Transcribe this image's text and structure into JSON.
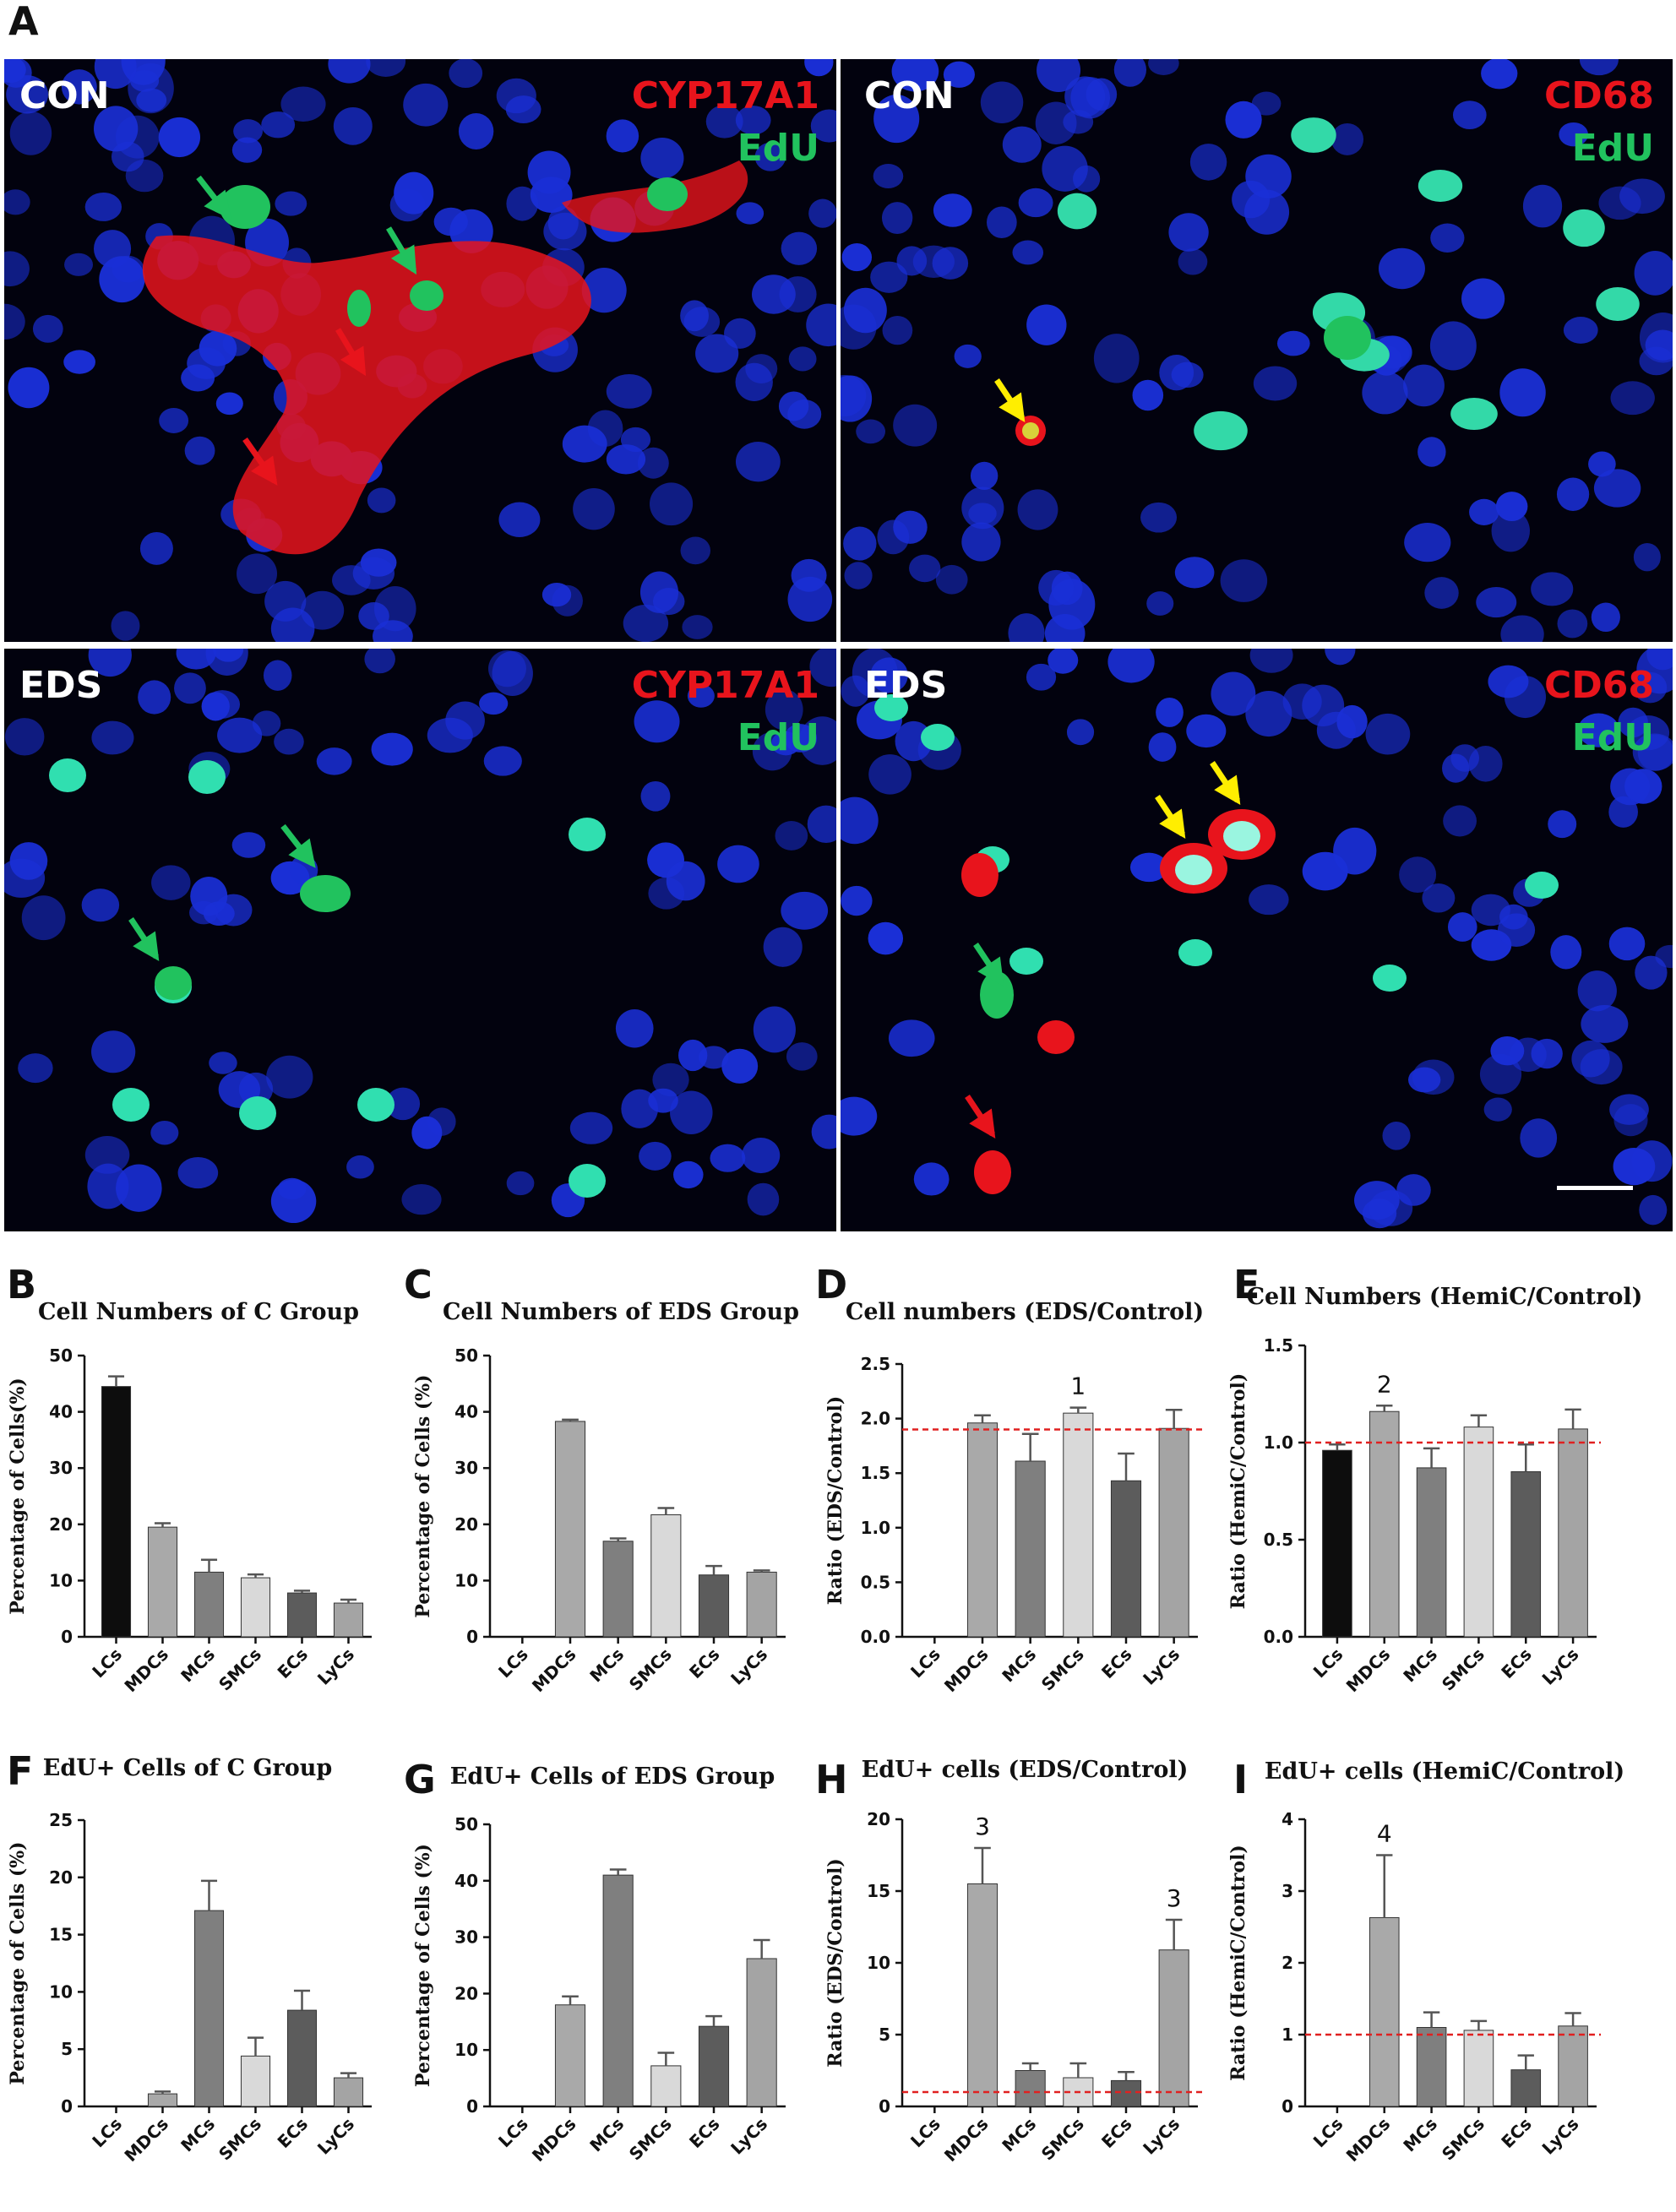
{
  "figure": {
    "panel_letters": {
      "A": "A",
      "B": "B",
      "C": "C",
      "D": "D",
      "E": "E",
      "F": "F",
      "G": "G",
      "H": "H",
      "I": "I"
    },
    "micrographs": [
      {
        "group": "CON",
        "marker": "CYP17A1",
        "stain": "EdU"
      },
      {
        "group": "CON",
        "marker": "CD68",
        "stain": "EdU"
      },
      {
        "group": "EDS",
        "marker": "CYP17A1",
        "stain": "EdU"
      },
      {
        "group": "EDS",
        "marker": "CD68",
        "stain": "EdU"
      }
    ]
  },
  "colors": {
    "c_lcs": "#0d0d0d",
    "c_mdcs": "#a9a9a9",
    "c_mcs": "#7f7f7f",
    "c_smcs": "#d9d9d9",
    "c_ecs": "#5c5c5c",
    "c_lycs": "#a4a4a4",
    "ref_line": "#e02020",
    "micro_bg": "#02020e",
    "nuclei": "#1a2fd6",
    "red_marker": "#e8141c",
    "green_marker": "#21c25e",
    "arrow_yellow": "#ffee00"
  },
  "chart_data": [
    {
      "id": "B",
      "type": "bar",
      "title": "Cell Numbers of C Group",
      "ylabel": "Percentage of Cells(%)",
      "categories": [
        "LCs",
        "MDCs",
        "MCs",
        "SMCs",
        "ECs",
        "LyCs"
      ],
      "values": [
        44.5,
        19.5,
        11.5,
        10.5,
        7.8,
        6.0
      ],
      "errors": [
        1.8,
        0.7,
        2.2,
        0.6,
        0.4,
        0.6
      ],
      "ylim": [
        0,
        50
      ],
      "yticks": [
        0,
        10,
        20,
        30,
        40,
        50
      ],
      "ytick_labels": [
        "0",
        "10",
        "20",
        "30",
        "40",
        "50"
      ],
      "annotations": []
    },
    {
      "id": "C",
      "type": "bar",
      "title": "Cell Numbers of EDS Group",
      "ylabel": "Percentage of Cells (%)",
      "categories": [
        "LCs",
        "MDCs",
        "MCs",
        "SMCs",
        "ECs",
        "LyCs"
      ],
      "values": [
        0,
        38.3,
        17.0,
        21.7,
        11.0,
        11.5
      ],
      "errors": [
        0,
        0.3,
        0.5,
        1.2,
        1.6,
        0.3
      ],
      "ylim": [
        0,
        50
      ],
      "yticks": [
        0,
        10,
        20,
        30,
        40,
        50
      ],
      "ytick_labels": [
        "0",
        "10",
        "20",
        "30",
        "40",
        "50"
      ],
      "annotations": []
    },
    {
      "id": "D",
      "type": "bar",
      "title": "Cell numbers (EDS/Control)",
      "ylabel": "Ratio (EDS/Control)",
      "categories": [
        "LCs",
        "MDCs",
        "MCs",
        "SMCs",
        "ECs",
        "LyCs"
      ],
      "values": [
        0,
        1.96,
        1.61,
        2.05,
        1.43,
        1.91
      ],
      "errors": [
        0,
        0.07,
        0.25,
        0.05,
        0.25,
        0.17
      ],
      "ylim": [
        0,
        2.5
      ],
      "yticks": [
        0,
        0.5,
        1,
        1.5,
        2,
        2.5
      ],
      "ytick_labels": [
        "0.0",
        "0.5",
        "1.0",
        "1.5",
        "2.0",
        "2.5"
      ],
      "reference_line": 1.9,
      "annotations": [
        {
          "category": "SMCs",
          "text": "1"
        }
      ]
    },
    {
      "id": "E",
      "type": "bar",
      "title": "Cell Numbers (HemiC/Control)",
      "ylabel": "Ratio (HemiC/Control)",
      "categories": [
        "LCs",
        "MDCs",
        "MCs",
        "SMCs",
        "ECs",
        "LyCs"
      ],
      "values": [
        0.96,
        1.16,
        0.87,
        1.08,
        0.85,
        1.07
      ],
      "errors": [
        0.03,
        0.03,
        0.1,
        0.06,
        0.14,
        0.1
      ],
      "ylim": [
        0,
        1.5
      ],
      "yticks": [
        0,
        0.5,
        1,
        1.5
      ],
      "ytick_labels": [
        "0.0",
        "0.5",
        "1.0",
        "1.5"
      ],
      "reference_line": 1.0,
      "annotations": [
        {
          "category": "MDCs",
          "text": "2"
        }
      ]
    },
    {
      "id": "F",
      "type": "bar",
      "title": "EdU+ Cells of C Group",
      "ylabel": "Percentage of Cells (%)",
      "categories": [
        "LCs",
        "MDCs",
        "MCs",
        "SMCs",
        "ECs",
        "LyCs"
      ],
      "values": [
        0,
        1.1,
        17.1,
        4.4,
        8.4,
        2.5
      ],
      "errors": [
        0,
        0.2,
        2.6,
        1.6,
        1.7,
        0.4
      ],
      "ylim": [
        0,
        25
      ],
      "yticks": [
        0,
        5,
        10,
        15,
        20,
        25
      ],
      "ytick_labels": [
        "0",
        "5",
        "10",
        "15",
        "20",
        "25"
      ],
      "annotations": []
    },
    {
      "id": "G",
      "type": "bar",
      "title": "EdU+ Cells of EDS Group",
      "ylabel": "Percentage of Cells (%)",
      "categories": [
        "LCs",
        "MDCs",
        "MCs",
        "SMCs",
        "ECs",
        "LyCs"
      ],
      "values": [
        0,
        18.0,
        41.0,
        7.2,
        14.2,
        26.2
      ],
      "errors": [
        0,
        1.5,
        1.0,
        2.3,
        1.8,
        3.3
      ],
      "ylim": [
        0,
        50
      ],
      "yticks": [
        0,
        10,
        20,
        30,
        40,
        50
      ],
      "ytick_labels": [
        "0",
        "10",
        "20",
        "30",
        "40",
        "50"
      ],
      "annotations": []
    },
    {
      "id": "H",
      "type": "bar",
      "title": "EdU+ cells (EDS/Control)",
      "ylabel": "Ratio (EDS/Control)",
      "categories": [
        "LCs",
        "MDCs",
        "MCs",
        "SMCs",
        "ECs",
        "LyCs"
      ],
      "values": [
        0,
        15.5,
        2.5,
        2.0,
        1.8,
        10.9
      ],
      "errors": [
        0,
        2.5,
        0.5,
        1.0,
        0.6,
        2.1
      ],
      "ylim": [
        0,
        20
      ],
      "yticks": [
        0,
        5,
        10,
        15,
        20
      ],
      "ytick_labels": [
        "0",
        "5",
        "10",
        "15",
        "20"
      ],
      "reference_line": 1.0,
      "annotations": [
        {
          "category": "MDCs",
          "text": "3"
        },
        {
          "category": "LyCs",
          "text": "3"
        }
      ]
    },
    {
      "id": "I",
      "type": "bar",
      "title": "EdU+ cells (HemiC/Control)",
      "ylabel": "Ratio (HemiC/Control)",
      "categories": [
        "LCs",
        "MDCs",
        "MCs",
        "SMCs",
        "ECs",
        "LyCs"
      ],
      "values": [
        0,
        2.63,
        1.1,
        1.06,
        0.51,
        1.12
      ],
      "errors": [
        0,
        0.87,
        0.21,
        0.13,
        0.2,
        0.18
      ],
      "ylim": [
        0,
        4
      ],
      "yticks": [
        0,
        1,
        2,
        3,
        4
      ],
      "ytick_labels": [
        "0",
        "1",
        "2",
        "3",
        "4"
      ],
      "reference_line": 1.0,
      "annotations": [
        {
          "category": "MDCs",
          "text": "4"
        }
      ]
    }
  ]
}
